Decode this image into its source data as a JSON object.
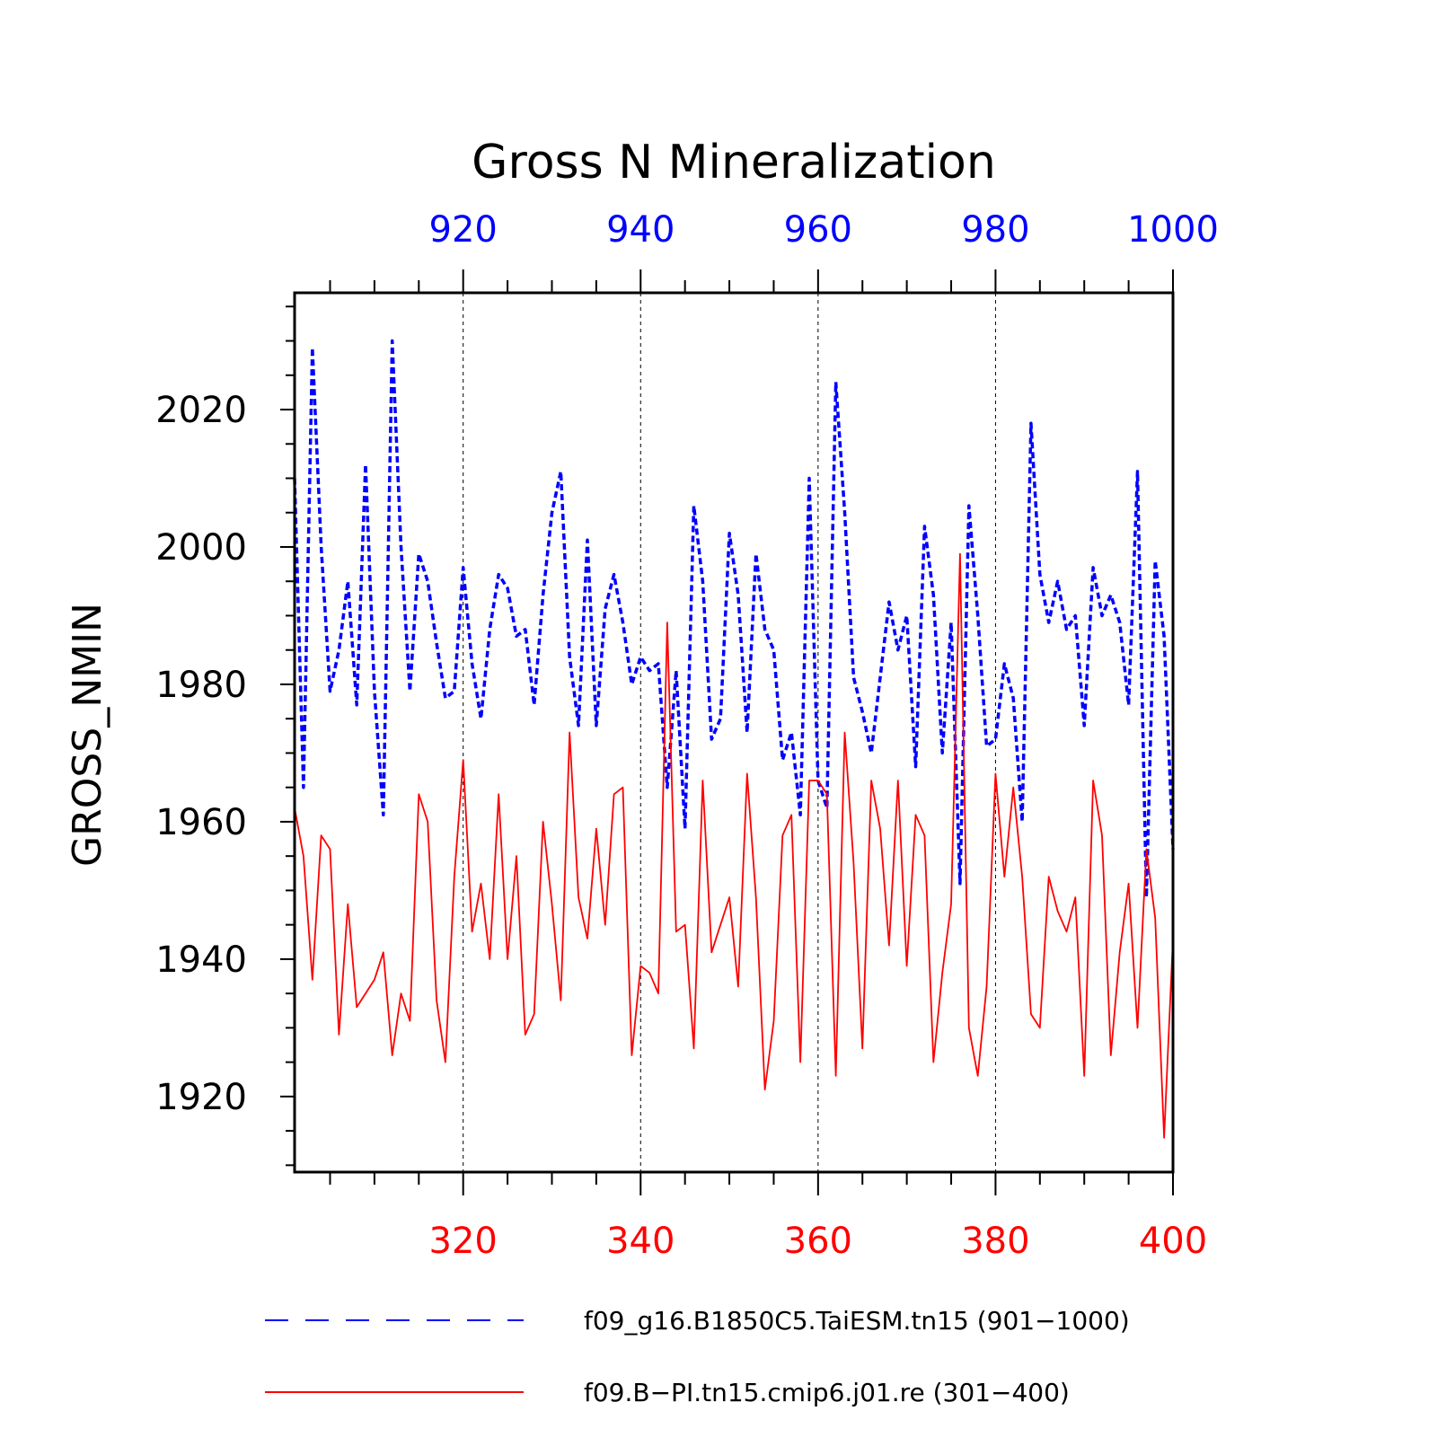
{
  "chart_data": {
    "type": "line",
    "title": "Gross N Mineralization",
    "ylabel": "GROSS_NMIN",
    "ylim": [
      1909,
      2037
    ],
    "yticks": [
      1920,
      1940,
      1960,
      1980,
      2000,
      2020
    ],
    "top_axis": {
      "range": [
        901,
        1000
      ],
      "ticks": [
        920,
        940,
        960,
        980,
        1000
      ],
      "color": "#0000ff"
    },
    "bottom_axis": {
      "range": [
        301,
        400
      ],
      "ticks": [
        320,
        340,
        360,
        380,
        400
      ],
      "color": "#ff0000"
    },
    "grid": "vertical dashed at major ticks",
    "legend_placement": "bottom",
    "series": [
      {
        "name": "f09_g16.B1850C5.TaiESM.tn15 (901–1000)",
        "color": "#0000ff",
        "dash": "dashed",
        "axis": "top",
        "x": [
          901,
          902,
          903,
          904,
          905,
          906,
          907,
          908,
          909,
          910,
          911,
          912,
          913,
          914,
          915,
          916,
          917,
          918,
          919,
          920,
          921,
          922,
          923,
          924,
          925,
          926,
          927,
          928,
          929,
          930,
          931,
          932,
          933,
          934,
          935,
          936,
          937,
          938,
          939,
          940,
          941,
          942,
          943,
          944,
          945,
          946,
          947,
          948,
          949,
          950,
          951,
          952,
          953,
          954,
          955,
          956,
          957,
          958,
          959,
          960,
          961,
          962,
          963,
          964,
          965,
          966,
          967,
          968,
          969,
          970,
          971,
          972,
          973,
          974,
          975,
          976,
          977,
          978,
          979,
          980,
          981,
          982,
          983,
          984,
          985,
          986,
          987,
          988,
          989,
          990,
          991,
          992,
          993,
          994,
          995,
          996,
          997,
          998,
          999,
          1000
        ],
        "values": [
          2010,
          1965,
          2029,
          2000,
          1979,
          1985,
          1995,
          1977,
          2012,
          1979,
          1961,
          2030,
          2000,
          1979,
          1999,
          1995,
          1986,
          1978,
          1979,
          1997,
          1983,
          1975,
          1988,
          1996,
          1994,
          1987,
          1988,
          1977,
          1993,
          2005,
          2011,
          1984,
          1974,
          2001,
          1974,
          1991,
          1996,
          1989,
          1980,
          1984,
          1982,
          1983,
          1965,
          1982,
          1959,
          2006,
          1995,
          1972,
          1975,
          2002,
          1993,
          1973,
          1999,
          1988,
          1985,
          1969,
          1973,
          1961,
          2010,
          1966,
          1962,
          2024,
          2005,
          1981,
          1976,
          1970,
          1981,
          1992,
          1985,
          1990,
          1968,
          2003,
          1993,
          1970,
          1989,
          1951,
          2006,
          1990,
          1971,
          1972,
          1983,
          1978,
          1960,
          2018,
          1996,
          1989,
          1995,
          1988,
          1990,
          1974,
          1997,
          1990,
          1993,
          1989,
          1977,
          2011,
          1949,
          1998,
          1987,
          1956
        ]
      },
      {
        "name": "f09.B−PI.tn15.cmip6.j01.re (301−400)",
        "color": "#ff0000",
        "dash": "solid",
        "axis": "bottom",
        "x": [
          301,
          302,
          303,
          304,
          305,
          306,
          307,
          308,
          309,
          310,
          311,
          312,
          313,
          314,
          315,
          316,
          317,
          318,
          319,
          320,
          321,
          322,
          323,
          324,
          325,
          326,
          327,
          328,
          329,
          330,
          331,
          332,
          333,
          334,
          335,
          336,
          337,
          338,
          339,
          340,
          341,
          342,
          343,
          344,
          345,
          346,
          347,
          348,
          349,
          350,
          351,
          352,
          353,
          354,
          355,
          356,
          357,
          358,
          359,
          360,
          361,
          362,
          363,
          364,
          365,
          366,
          367,
          368,
          369,
          370,
          371,
          372,
          373,
          374,
          375,
          376,
          377,
          378,
          379,
          380,
          381,
          382,
          383,
          384,
          385,
          386,
          387,
          388,
          389,
          390,
          391,
          392,
          393,
          394,
          395,
          396,
          397,
          398,
          399,
          400
        ],
        "values": [
          1962,
          1955,
          1937,
          1958,
          1956,
          1929,
          1948,
          1933,
          1935,
          1937,
          1941,
          1926,
          1935,
          1931,
          1964,
          1960,
          1934,
          1925,
          1952,
          1969,
          1944,
          1951,
          1940,
          1964,
          1940,
          1955,
          1929,
          1932,
          1960,
          1948,
          1934,
          1973,
          1949,
          1943,
          1959,
          1945,
          1964,
          1965,
          1926,
          1939,
          1938,
          1935,
          1989,
          1944,
          1945,
          1927,
          1966,
          1941,
          1945,
          1949,
          1936,
          1967,
          1949,
          1921,
          1931,
          1958,
          1961,
          1925,
          1966,
          1966,
          1964,
          1923,
          1973,
          1954,
          1927,
          1966,
          1959,
          1942,
          1966,
          1939,
          1961,
          1958,
          1925,
          1938,
          1948,
          1999,
          1930,
          1923,
          1936,
          1967,
          1952,
          1965,
          1952,
          1932,
          1930,
          1952,
          1947,
          1944,
          1949,
          1923,
          1966,
          1958,
          1926,
          1941,
          1951,
          1930,
          1956,
          1946,
          1914,
          1943
        ]
      }
    ],
    "legend": [
      {
        "label": "f09_g16.B1850C5.TaiESM.tn15 (901−1000)",
        "color": "#0000ff",
        "dash": "dashed"
      },
      {
        "label": "f09.B−PI.tn15.cmip6.j01.re (301−400)",
        "color": "#ff0000",
        "dash": "solid"
      }
    ]
  }
}
